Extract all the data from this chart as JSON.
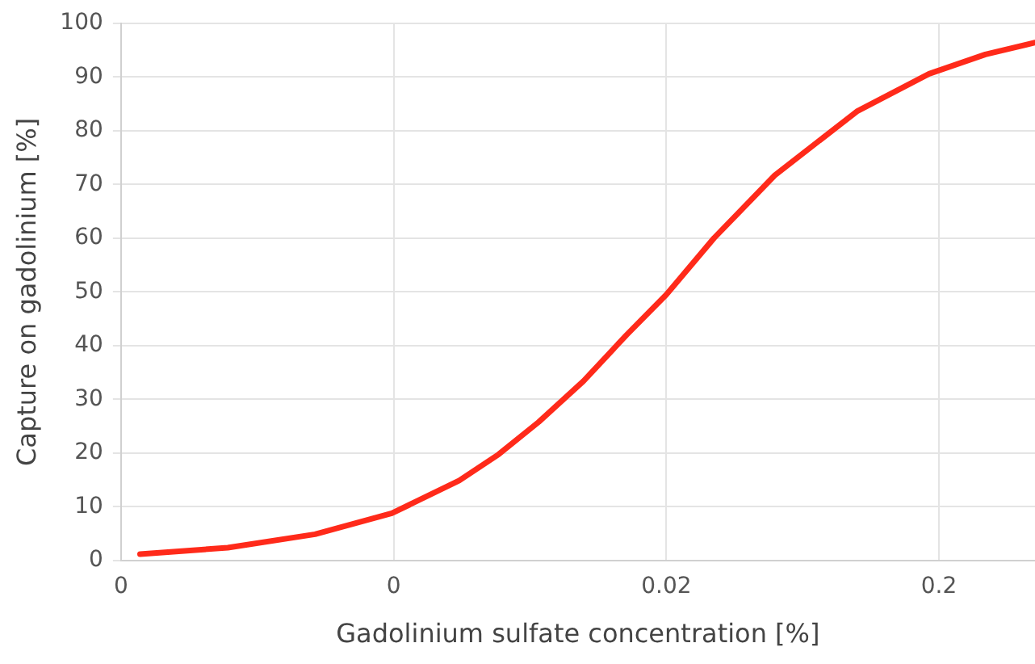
{
  "chart_data": {
    "type": "line",
    "xlabel": "Gadolinium sulfate concentration [%]",
    "ylabel": "Capture on gadolinium [%]",
    "x": [
      0.000235,
      0.000493,
      0.00103,
      0.00197,
      0.00348,
      0.00486,
      0.00681,
      0.00993,
      0.0143,
      0.02,
      0.0299,
      0.05,
      0.1,
      0.184,
      0.296,
      0.45
    ],
    "series": [
      {
        "color": "#ff2a1a",
        "values": [
          1.2,
          2.4,
          4.9,
          8.8,
          14.9,
          19.8,
          25.8,
          33.4,
          42,
          49.5,
          60,
          71.7,
          83.6,
          90.6,
          94.2,
          96.4
        ]
      }
    ],
    "log": "x",
    "xlim": [
      0.0002,
      0.45
    ],
    "xticks": [
      {
        "value": 0.0002,
        "label": "0"
      },
      {
        "value": 0.002,
        "label": "0"
      },
      0.02,
      0.2
    ],
    "ylim": [
      0,
      100
    ],
    "yticks": [
      0,
      10,
      20,
      30,
      40,
      50,
      60,
      70,
      80,
      90,
      100
    ],
    "grid": true,
    "legend": false,
    "marker": "none",
    "line_style": "solid"
  }
}
